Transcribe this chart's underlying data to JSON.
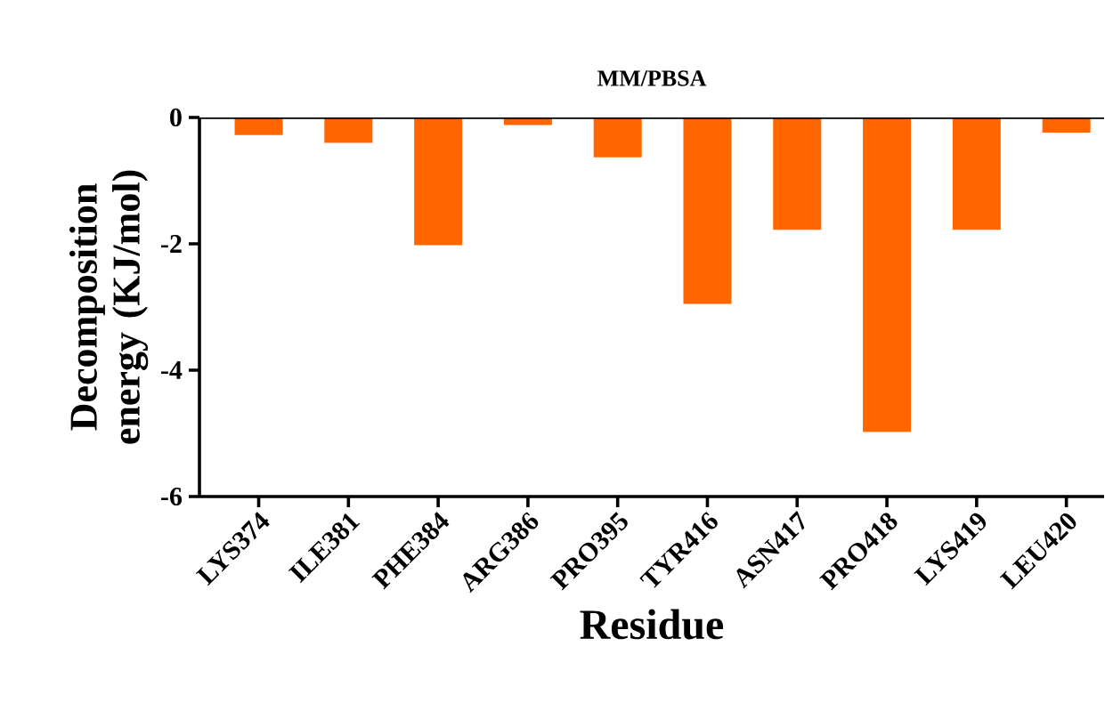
{
  "chart_data": {
    "type": "bar",
    "title": "MM/PBSA",
    "xlabel": "Residue",
    "ylabel": "Decomposition energy (KJ/mol)",
    "categories": [
      "LYS374",
      "ILE381",
      "PHE384",
      "ARG386",
      "PRO395",
      "TYR416",
      "ASN417",
      "PRO418",
      "LYS419",
      "LEU420"
    ],
    "values": [
      -0.28,
      -0.4,
      -2.02,
      -0.12,
      -0.63,
      -2.95,
      -1.78,
      -4.98,
      -1.78,
      -0.24
    ],
    "color": "#ff6600",
    "ylim": [
      -6,
      0
    ],
    "yticks": [
      -6,
      -4,
      -2,
      0
    ],
    "grid": false
  }
}
